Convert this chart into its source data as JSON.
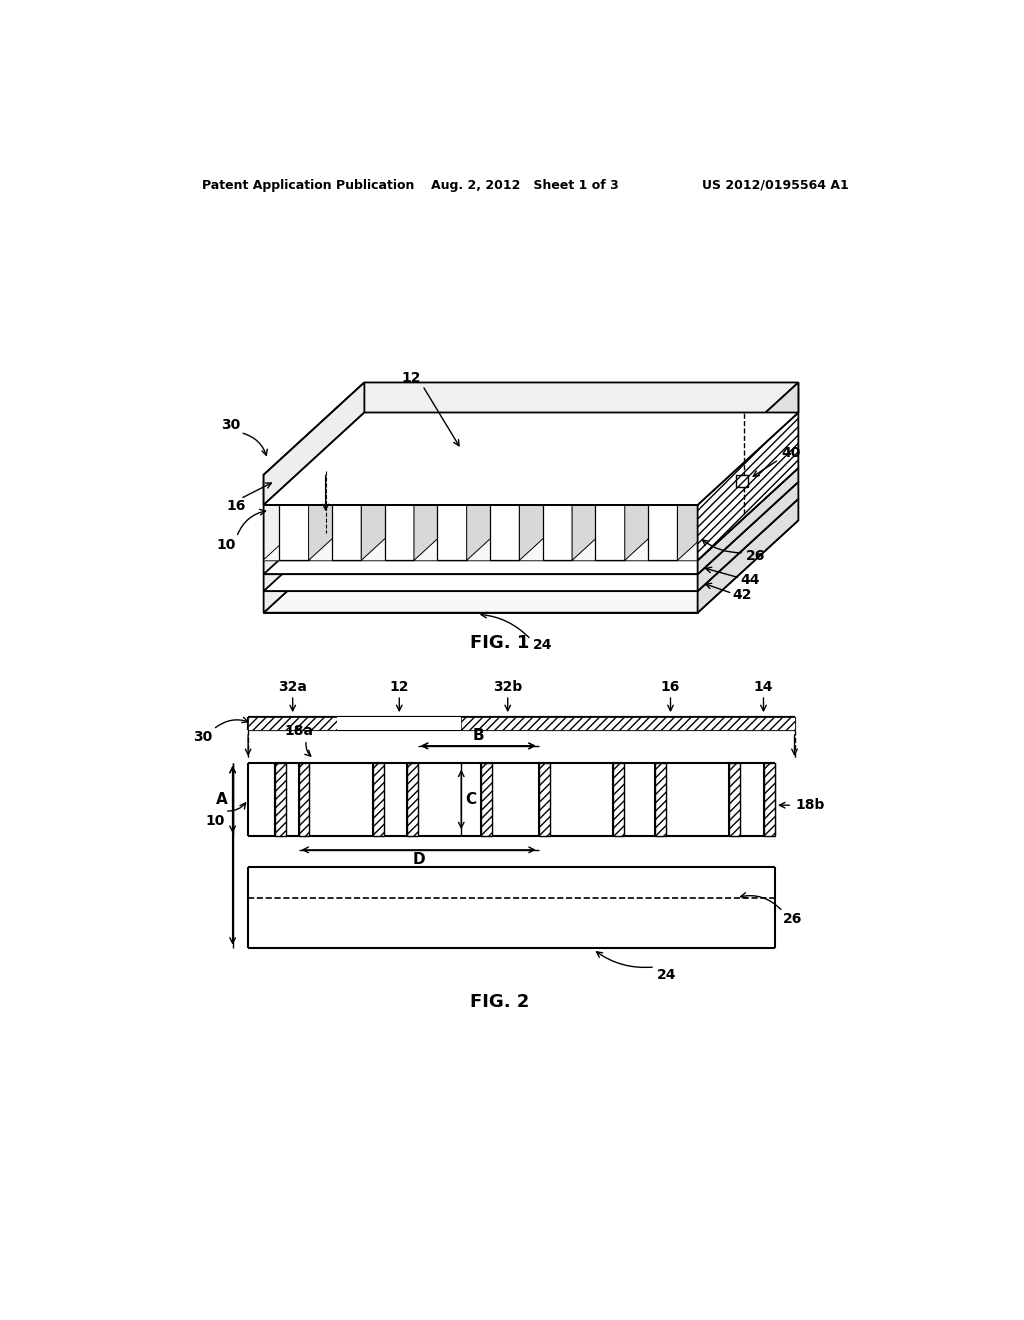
{
  "bg_color": "#ffffff",
  "header_left": "Patent Application Publication",
  "header_center": "Aug. 2, 2012   Sheet 1 of 3",
  "header_right": "US 2012/0195564 A1",
  "fig1_label": "FIG. 1",
  "fig2_label": "FIG. 2",
  "line_color": "#000000"
}
